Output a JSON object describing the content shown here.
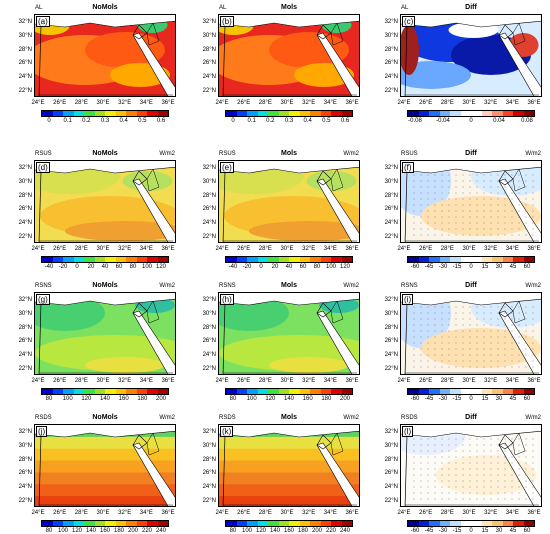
{
  "rows": [
    {
      "var": "AL",
      "unit": "",
      "panels": [
        {
          "label": "(a)",
          "title": "NoMols",
          "map": "warm-al"
        },
        {
          "label": "(b)",
          "title": "Mols",
          "map": "warm-al"
        },
        {
          "label": "(c)",
          "title": "Diff",
          "map": "diff-al"
        }
      ],
      "colorbars": [
        {
          "ticks": [
            "0",
            "0.1",
            "0.2",
            "0.3",
            "0.4",
            "0.5",
            "0.6"
          ],
          "colors": [
            "#0000c8",
            "#0040ff",
            "#00a0ff",
            "#00e0e0",
            "#40e040",
            "#a0e020",
            "#f0f000",
            "#ffc000",
            "#ff8000",
            "#ff4000",
            "#e00000",
            "#a00000"
          ]
        },
        {
          "ticks": [
            "0",
            "0.1",
            "0.2",
            "0.3",
            "0.4",
            "0.5",
            "0.6"
          ],
          "colors": [
            "#0000c8",
            "#0040ff",
            "#00a0ff",
            "#00e0e0",
            "#40e040",
            "#a0e020",
            "#f0f000",
            "#ffc000",
            "#ff8000",
            "#ff4000",
            "#e00000",
            "#a00000"
          ]
        },
        {
          "ticks": [
            "-0.08",
            "-0.04",
            "0",
            "0.04",
            "0.08"
          ],
          "colors": [
            "#000090",
            "#0020e0",
            "#2070ff",
            "#70b0ff",
            "#c0e0ff",
            "#ffffff",
            "#ffffff",
            "#ffd0c0",
            "#ff9070",
            "#ff4020",
            "#d00000",
            "#800000"
          ]
        }
      ]
    },
    {
      "var": "RSUS",
      "unit": "W/m2",
      "panels": [
        {
          "label": "(d)",
          "title": "NoMols",
          "map": "yg"
        },
        {
          "label": "(e)",
          "title": "Mols",
          "map": "yg"
        },
        {
          "label": "(f)",
          "title": "Diff",
          "map": "diff-light"
        }
      ],
      "colorbars": [
        {
          "ticks": [
            "-40",
            "-20",
            "0",
            "20",
            "40",
            "60",
            "80",
            "100",
            "120"
          ],
          "colors": [
            "#0000c8",
            "#0040ff",
            "#00a0ff",
            "#00e0e0",
            "#40e040",
            "#a0e020",
            "#f0f000",
            "#ffc000",
            "#ff8000",
            "#ff4000",
            "#e00000",
            "#a00000"
          ]
        },
        {
          "ticks": [
            "-40",
            "-20",
            "0",
            "20",
            "40",
            "60",
            "80",
            "100",
            "120"
          ],
          "colors": [
            "#0000c8",
            "#0040ff",
            "#00a0ff",
            "#00e0e0",
            "#40e040",
            "#a0e020",
            "#f0f000",
            "#ffc000",
            "#ff8000",
            "#ff4000",
            "#e00000",
            "#a00000"
          ]
        },
        {
          "ticks": [
            "-60",
            "-45",
            "-30",
            "-15",
            "0",
            "15",
            "30",
            "45",
            "60"
          ],
          "colors": [
            "#000090",
            "#0020e0",
            "#2070ff",
            "#70b0ff",
            "#c0e0ff",
            "#ffffff",
            "#ffffff",
            "#ffe8b0",
            "#ffc070",
            "#ff8040",
            "#e02000",
            "#900000"
          ]
        }
      ]
    },
    {
      "var": "RSNS",
      "unit": "W/m2",
      "panels": [
        {
          "label": "(g)",
          "title": "NoMols",
          "map": "green"
        },
        {
          "label": "(h)",
          "title": "Mols",
          "map": "green"
        },
        {
          "label": "(i)",
          "title": "Diff",
          "map": "diff-light"
        }
      ],
      "colorbars": [
        {
          "ticks": [
            "80",
            "100",
            "120",
            "140",
            "160",
            "180",
            "200"
          ],
          "colors": [
            "#0000c8",
            "#0040ff",
            "#00a0ff",
            "#00e0e0",
            "#40e040",
            "#a0e020",
            "#f0f000",
            "#ffc000",
            "#ff8000",
            "#ff4000",
            "#e00000",
            "#a00000"
          ]
        },
        {
          "ticks": [
            "80",
            "100",
            "120",
            "140",
            "160",
            "180",
            "200"
          ],
          "colors": [
            "#0000c8",
            "#0040ff",
            "#00a0ff",
            "#00e0e0",
            "#40e040",
            "#a0e020",
            "#f0f000",
            "#ffc000",
            "#ff8000",
            "#ff4000",
            "#e00000",
            "#a00000"
          ]
        },
        {
          "ticks": [
            "-60",
            "-45",
            "-30",
            "-15",
            "0",
            "15",
            "30",
            "45",
            "60"
          ],
          "colors": [
            "#000090",
            "#0020e0",
            "#2070ff",
            "#70b0ff",
            "#c0e0ff",
            "#ffffff",
            "#ffffff",
            "#ffe8b0",
            "#ffc070",
            "#ff8040",
            "#e02000",
            "#900000"
          ]
        }
      ]
    },
    {
      "var": "RSDS",
      "unit": "W/m2",
      "panels": [
        {
          "label": "(j)",
          "title": "NoMols",
          "map": "bands"
        },
        {
          "label": "(k)",
          "title": "Mols",
          "map": "bands"
        },
        {
          "label": "(l)",
          "title": "Diff",
          "map": "diff-white"
        }
      ],
      "colorbars": [
        {
          "ticks": [
            "80",
            "100",
            "120",
            "140",
            "160",
            "180",
            "200",
            "220",
            "240"
          ],
          "colors": [
            "#0000c8",
            "#0040ff",
            "#00a0ff",
            "#00e0e0",
            "#40e040",
            "#a0e020",
            "#f0f000",
            "#ffc000",
            "#ff8000",
            "#ff4000",
            "#e00000",
            "#a00000"
          ]
        },
        {
          "ticks": [
            "80",
            "100",
            "120",
            "140",
            "160",
            "180",
            "200",
            "220",
            "240"
          ],
          "colors": [
            "#0000c8",
            "#0040ff",
            "#00a0ff",
            "#00e0e0",
            "#40e040",
            "#a0e020",
            "#f0f000",
            "#ffc000",
            "#ff8000",
            "#ff4000",
            "#e00000",
            "#a00000"
          ]
        },
        {
          "ticks": [
            "-60",
            "-45",
            "-30",
            "-15",
            "0",
            "15",
            "30",
            "45",
            "60"
          ],
          "colors": [
            "#000090",
            "#0020e0",
            "#2070ff",
            "#70b0ff",
            "#c0e0ff",
            "#ffffff",
            "#ffffff",
            "#ffe8b0",
            "#ffc070",
            "#ff8040",
            "#e02000",
            "#900000"
          ]
        }
      ]
    }
  ],
  "lat_ticks": [
    "32°N",
    "30°N",
    "28°N",
    "26°N",
    "24°N",
    "22°N"
  ],
  "lon_ticks": [
    "24°E",
    "26°E",
    "28°E",
    "30°E",
    "32°E",
    "34°E",
    "36°E"
  ]
}
